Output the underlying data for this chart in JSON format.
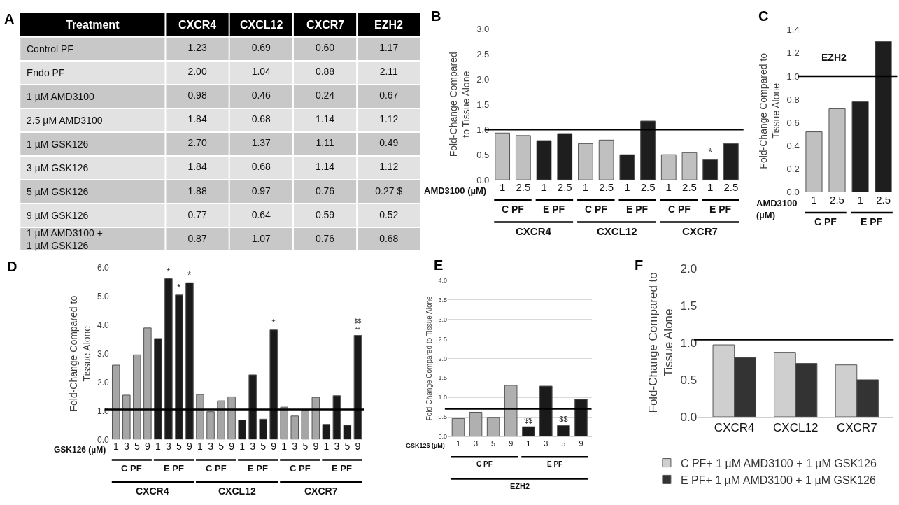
{
  "chart_data": [
    {
      "type": "heatmap",
      "title": "A",
      "ylabel": "Treatment",
      "categories": [
        "CXCR4",
        "CXCL12",
        "CXCR7",
        "EZH2"
      ],
      "y_categories": [
        "Control PF",
        "Endo PF",
        "1 µM AMD3100",
        "2.5 µM AMD3100",
        "1 µM GSK126",
        "3 µM GSK126",
        "5 µM GSK126",
        "9 µM GSK126",
        "1 µM AMD3100 +\n1 µM GSK126"
      ],
      "cells": [
        [
          1.23,
          0.69,
          0.6,
          1.17
        ],
        [
          2.0,
          1.04,
          0.88,
          2.11
        ],
        [
          0.98,
          0.46,
          0.24,
          0.67
        ],
        [
          1.84,
          0.68,
          1.14,
          1.12
        ],
        [
          2.7,
          1.37,
          1.11,
          0.49
        ],
        [
          1.84,
          0.68,
          1.14,
          1.12
        ],
        [
          1.88,
          0.97,
          0.76,
          0.27
        ],
        [
          0.77,
          0.64,
          0.59,
          0.52
        ],
        [
          0.87,
          1.07,
          0.76,
          0.68
        ]
      ],
      "cell_labels": [
        [
          "1.23",
          "0.69",
          "0.60",
          "1.17"
        ],
        [
          "2.00",
          "1.04",
          "0.88",
          "2.11"
        ],
        [
          "0.98",
          "0.46",
          "0.24",
          "0.67"
        ],
        [
          "1.84",
          "0.68",
          "1.14",
          "1.12"
        ],
        [
          "2.70",
          "1.37",
          "1.11",
          "0.49"
        ],
        [
          "1.84",
          "0.68",
          "1.14",
          "1.12"
        ],
        [
          "1.88",
          "0.97",
          "0.76",
          "0.27 $"
        ],
        [
          "0.77",
          "0.64",
          "0.59",
          "0.52"
        ],
        [
          "0.87",
          "1.07",
          "0.76",
          "0.68"
        ]
      ]
    },
    {
      "type": "bar",
      "title": "B",
      "ylabel": "Fold-Change Compared\nto Tissue Alone",
      "xlabel": "AMD3100 (µM)",
      "categories": [
        "1",
        "2.5",
        "1",
        "2.5",
        "1",
        "2.5",
        "1",
        "2.5",
        "1",
        "2.5",
        "1",
        "2.5"
      ],
      "values": [
        0.93,
        0.88,
        0.78,
        0.92,
        0.72,
        0.79,
        0.5,
        1.17,
        0.5,
        0.54,
        0.4,
        0.72
      ],
      "colors": [
        "#c0c0c0",
        "#c0c0c0",
        "#1e1e1e",
        "#1e1e1e",
        "#c0c0c0",
        "#c0c0c0",
        "#1e1e1e",
        "#1e1e1e",
        "#c0c0c0",
        "#c0c0c0",
        "#1e1e1e",
        "#1e1e1e"
      ],
      "value_labels": [
        null,
        null,
        null,
        null,
        null,
        null,
        null,
        null,
        null,
        null,
        "*",
        null
      ],
      "ylim": [
        0,
        3.0
      ],
      "yticks": [
        {
          "value": 0,
          "label": "0.0"
        },
        {
          "value": 0.5,
          "label": "0.5"
        },
        {
          "value": 1,
          "label": "1.0"
        },
        {
          "value": 1.5,
          "label": "1.5"
        },
        {
          "value": 2,
          "label": "2.0"
        },
        {
          "value": 2.5,
          "label": "2.5"
        },
        {
          "value": 3,
          "label": "3.0"
        }
      ],
      "ref_lines": [
        {
          "axis": "y",
          "value": 1.0,
          "color": "#000000"
        }
      ],
      "annotations": [
        "C PF",
        "E PF",
        "C PF",
        "E PF",
        "C PF",
        "E PF",
        "CXCR4",
        "CXCL12",
        "CXCR7"
      ]
    },
    {
      "type": "bar",
      "title": "C",
      "subtitle": "EZH2",
      "ylabel": "Fold-Change Compared to\nTissue Alone",
      "xlabel": "AMD3100\n(µM)",
      "categories": [
        "1",
        "2.5",
        "1",
        "2.5"
      ],
      "values": [
        0.52,
        0.72,
        0.78,
        1.3
      ],
      "colors": [
        "#c0c0c0",
        "#c0c0c0",
        "#1e1e1e",
        "#1e1e1e"
      ],
      "ylim": [
        0,
        1.4
      ],
      "yticks": [
        {
          "value": 0,
          "label": "0.0"
        },
        {
          "value": 0.2,
          "label": "0.2"
        },
        {
          "value": 0.4,
          "label": "0.4"
        },
        {
          "value": 0.6,
          "label": "0.6"
        },
        {
          "value": 0.8,
          "label": "0.8"
        },
        {
          "value": 1.0,
          "label": "1.0"
        },
        {
          "value": 1.2,
          "label": "1.2"
        },
        {
          "value": 1.4,
          "label": "1.4"
        }
      ],
      "ref_lines": [
        {
          "axis": "y",
          "value": 1.0,
          "color": "#000000"
        }
      ],
      "annotations": [
        "C PF",
        "E PF"
      ]
    },
    {
      "type": "bar",
      "title": "D",
      "ylabel": "Fold-Change Compared to\nTissue Alone",
      "xlabel": "GSK126 (µM)",
      "categories": [
        "1",
        "3",
        "5",
        "9",
        "1",
        "3",
        "5",
        "9",
        "1",
        "3",
        "5",
        "9",
        "1",
        "3",
        "5",
        "9",
        "1",
        "3",
        "5",
        "9",
        "1",
        "3",
        "5",
        "9"
      ],
      "values": [
        2.6,
        1.55,
        2.96,
        3.9,
        3.53,
        5.62,
        5.05,
        5.48,
        1.57,
        0.97,
        1.35,
        1.49,
        0.68,
        2.26,
        0.71,
        3.83,
        1.13,
        0.82,
        1.03,
        1.47,
        0.53,
        1.53,
        0.5,
        3.64
      ],
      "colors": [
        "#a6a6a6",
        "#a6a6a6",
        "#a6a6a6",
        "#a6a6a6",
        "#1a1a1a",
        "#1a1a1a",
        "#1a1a1a",
        "#1a1a1a",
        "#a6a6a6",
        "#a6a6a6",
        "#a6a6a6",
        "#a6a6a6",
        "#1a1a1a",
        "#1a1a1a",
        "#1a1a1a",
        "#1a1a1a",
        "#a6a6a6",
        "#a6a6a6",
        "#a6a6a6",
        "#a6a6a6",
        "#1a1a1a",
        "#1a1a1a",
        "#1a1a1a",
        "#1a1a1a"
      ],
      "value_labels": [
        null,
        null,
        null,
        null,
        null,
        "*",
        "*",
        "*",
        null,
        null,
        null,
        null,
        null,
        null,
        null,
        "*",
        null,
        null,
        null,
        null,
        null,
        null,
        null,
        "$$\n**"
      ],
      "ylim": [
        0,
        6.0
      ],
      "yticks": [
        {
          "value": 0,
          "label": "0.0"
        },
        {
          "value": 1,
          "label": "1.0"
        },
        {
          "value": 2,
          "label": "2.0"
        },
        {
          "value": 3,
          "label": "3.0"
        },
        {
          "value": 4,
          "label": "4.0"
        },
        {
          "value": 5,
          "label": "5.0"
        },
        {
          "value": 6,
          "label": "6.0"
        }
      ],
      "ref_lines": [
        {
          "axis": "y",
          "value": 1.05,
          "color": "#000000"
        }
      ],
      "annotations": [
        "C PF",
        "E PF",
        "C PF",
        "E PF",
        "C PF",
        "E PF",
        "CXCR4",
        "CXCL12",
        "CXCR7"
      ]
    },
    {
      "type": "bar",
      "title": "E",
      "ylabel": "Fold-Change Compared to Tissue Alone",
      "xlabel": "GSK126 (µM)",
      "categories": [
        "1",
        "3",
        "5",
        "9",
        "1",
        "3",
        "5",
        "9"
      ],
      "values": [
        0.46,
        0.62,
        0.49,
        1.31,
        0.25,
        1.29,
        0.28,
        0.95
      ],
      "colors": [
        "#b0b0b0",
        "#b0b0b0",
        "#b0b0b0",
        "#b0b0b0",
        "#1a1a1a",
        "#1a1a1a",
        "#1a1a1a",
        "#1a1a1a"
      ],
      "value_labels": [
        null,
        null,
        null,
        null,
        "$$",
        null,
        "$$",
        null
      ],
      "ylim": [
        0,
        4.0
      ],
      "yticks": [
        {
          "value": 0,
          "label": "0.0"
        },
        {
          "value": 0.5,
          "label": "0.5"
        },
        {
          "value": 1,
          "label": "1.0"
        },
        {
          "value": 1.5,
          "label": "1.5"
        },
        {
          "value": 2,
          "label": "2.0"
        },
        {
          "value": 2.5,
          "label": "2.5"
        },
        {
          "value": 3,
          "label": "3.0"
        },
        {
          "value": 3.5,
          "label": "3.5"
        },
        {
          "value": 4,
          "label": "4.0"
        }
      ],
      "grid": "y",
      "ref_lines": [
        {
          "axis": "y",
          "value": 0.71,
          "color": "#000000"
        }
      ],
      "annotations": [
        "C PF",
        "E PF",
        "EZH2"
      ]
    },
    {
      "type": "bar",
      "title": "F",
      "ylabel": "Fold-Change Compared to\nTissue Alone",
      "categories": [
        "CXCR4",
        "CXCL12",
        "CXCR7"
      ],
      "series": [
        {
          "name": "C PF+ 1 µM AMD3100 + 1 µM GSK126",
          "color": "#cfcfcf",
          "values": [
            0.97,
            0.87,
            0.7
          ]
        },
        {
          "name": "E PF+ 1 µM AMD3100 + 1 µM GSK126",
          "color": "#333333",
          "values": [
            0.8,
            0.72,
            0.5
          ]
        }
      ],
      "ylim": [
        0,
        2.0
      ],
      "yticks": [
        {
          "value": 0,
          "label": "0.0"
        },
        {
          "value": 0.5,
          "label": "0.5"
        },
        {
          "value": 1,
          "label": "1.0"
        },
        {
          "value": 1.5,
          "label": "1.5"
        },
        {
          "value": 2,
          "label": "2.0"
        }
      ],
      "ref_lines": [
        {
          "axis": "y",
          "value": 1.04,
          "color": "#000000"
        }
      ],
      "legend": "bottom"
    }
  ]
}
